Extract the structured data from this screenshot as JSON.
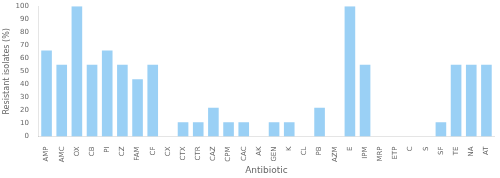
{
  "chart_data": {
    "type": "bar",
    "categories": [
      "AMP",
      "AMC",
      "OX",
      "CB",
      "PI",
      "CZ",
      "FAM",
      "CF",
      "CX",
      "CTX",
      "CTR",
      "CAZ",
      "CPM",
      "CAC",
      "AK",
      "GEN",
      "K",
      "CL",
      "PB",
      "AZM",
      "E",
      "IPM",
      "MRP",
      "ETP",
      "C",
      "S",
      "SF",
      "TE",
      "NA",
      "AT"
    ],
    "values": [
      66,
      55,
      100,
      55,
      66,
      55,
      44,
      55,
      0,
      11,
      11,
      22,
      11,
      11,
      0,
      11,
      11,
      0,
      22,
      0,
      100,
      55,
      0,
      0,
      0,
      0,
      11,
      55,
      55,
      55
    ],
    "xlabel": "Antibiotic",
    "ylabel": "Resistant isolates (%)",
    "ylim": [
      0,
      100
    ],
    "yticks": [
      0,
      10,
      20,
      30,
      40,
      50,
      60,
      70,
      80,
      90,
      100
    ],
    "grid": false
  }
}
